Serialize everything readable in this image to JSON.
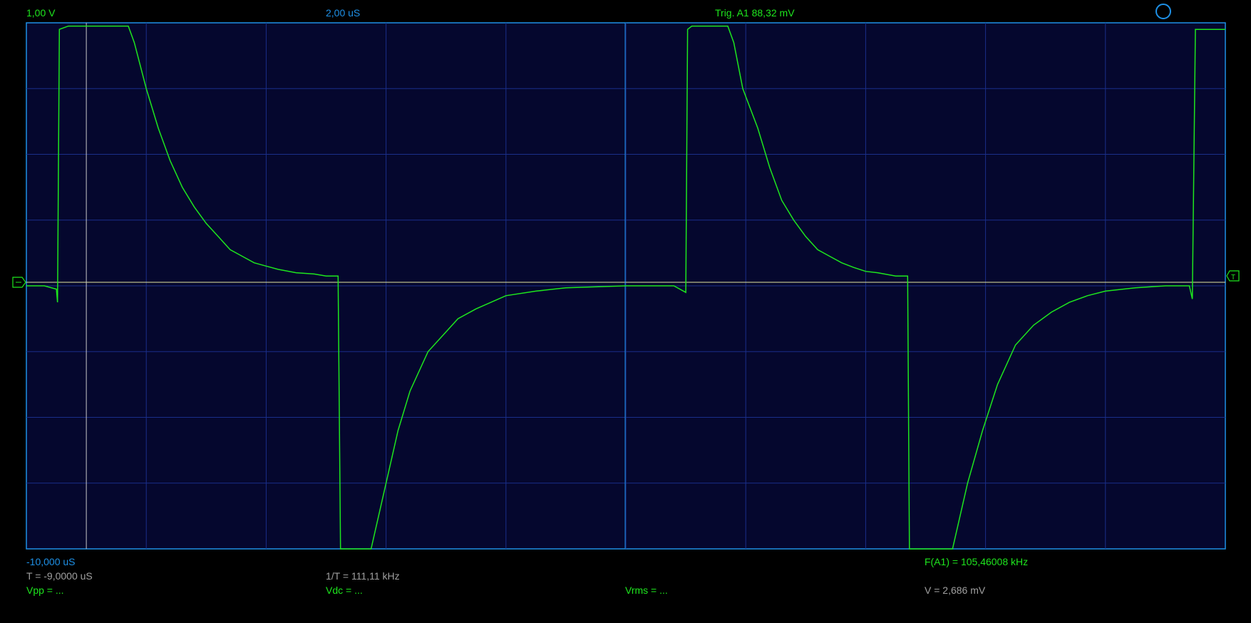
{
  "header": {
    "volts_per_div": "1,00 V",
    "time_per_div": "2,00 uS",
    "trigger": "Trig. A1  88,32 mV"
  },
  "footer": {
    "time_offset": "-10,000 uS",
    "cursor_t": "T = -9,0000 uS",
    "cursor_inv_t": "1/T = 111,11 kHz",
    "vpp": "Vpp = ...",
    "vdc": "Vdc = ...",
    "vrms": "Vrms = ...",
    "frequency": "F(A1) = 105,46008 kHz",
    "cursor_v": "V = 2,686 mV"
  },
  "colors": {
    "background": "#000000",
    "grid_background": "#05072e",
    "grid_border": "#1e90e6",
    "grid_lines": "#1a2f8a",
    "trace": "#1ee61e",
    "cursor": "#c8c8c8"
  },
  "icons": {
    "ground_marker": "ground-marker-icon",
    "trigger_marker": "trigger-marker-icon",
    "status_circle": "status-circle-icon"
  },
  "chart_data": {
    "type": "line",
    "title": "",
    "xlabel": "",
    "ylabel": "",
    "xlim_us": [
      -10,
      10
    ],
    "ylim_v": [
      -4,
      4
    ],
    "grid": true,
    "divisions": {
      "x": 10,
      "y": 8
    },
    "series": [
      {
        "x_us": [
          -10,
          -9.7,
          -9.5,
          -9.48,
          -9.45,
          -9.3,
          -8.3,
          -8.2,
          -8,
          -7.8,
          -7.6,
          -7.4,
          -7.2,
          -7,
          -6.8,
          -6.6,
          -6.4,
          -6.2,
          -6,
          -5.8,
          -5.5,
          -5.2,
          -5,
          -4.8,
          -4.76,
          -4.45,
          -4.25,
          -4,
          -3.8,
          -3.6,
          -3.3,
          -3,
          -2.8,
          -2.5,
          -2,
          -1.5,
          -1,
          0,
          0.5,
          0.8,
          1,
          1.03,
          1.1,
          1.25,
          1.7,
          1.8,
          1.95,
          2.2,
          2.4,
          2.6,
          2.8,
          3,
          3.2,
          3.4,
          3.6,
          3.8,
          4,
          4.2,
          4.5,
          4.7,
          4.73,
          4.78,
          5.45,
          5.7,
          5.95,
          6.2,
          6.5,
          6.8,
          7.1,
          7.4,
          7.7,
          8,
          8.5,
          9,
          9.4,
          9.45,
          9.5,
          9.6,
          10
        ],
        "y_v": [
          0,
          0,
          -0.05,
          -0.25,
          3.9,
          3.95,
          3.95,
          3.7,
          3.0,
          2.4,
          1.9,
          1.5,
          1.2,
          0.95,
          0.75,
          0.55,
          0.45,
          0.35,
          0.3,
          0.25,
          0.2,
          0.18,
          0.15,
          0.15,
          -4,
          -4,
          -4,
          -3.0,
          -2.2,
          -1.6,
          -1.0,
          -0.7,
          -0.5,
          -0.35,
          -0.15,
          -0.08,
          -0.03,
          0,
          0,
          0,
          -0.1,
          3.9,
          3.95,
          3.95,
          3.95,
          3.7,
          3.0,
          2.4,
          1.8,
          1.3,
          1.0,
          0.75,
          0.55,
          0.45,
          0.35,
          0.28,
          0.22,
          0.2,
          0.15,
          0.15,
          -4,
          -4,
          -4,
          -3.0,
          -2.2,
          -1.5,
          -0.9,
          -0.6,
          -0.4,
          -0.25,
          -0.15,
          -0.08,
          -0.03,
          0,
          0,
          -0.2,
          3.9,
          3.9,
          3.9
        ]
      }
    ],
    "cursor_x_us": -9
  }
}
